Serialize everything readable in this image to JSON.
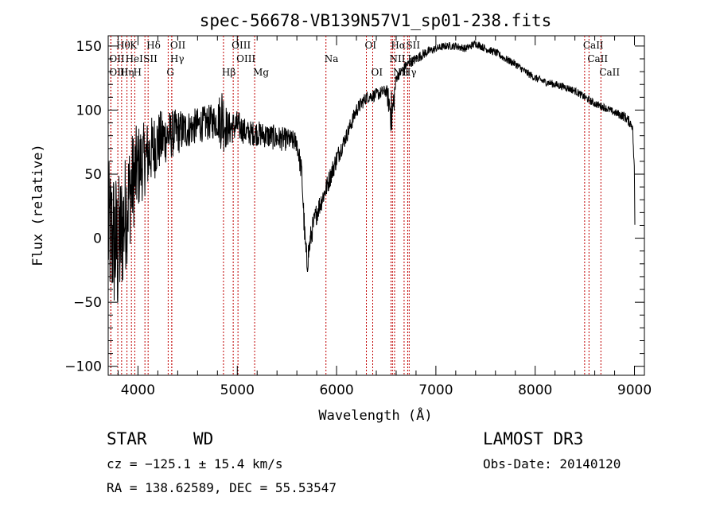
{
  "chart_data": {
    "type": "line",
    "title": "spec-56678-VB139N57V1_sp01-238.fits",
    "xlabel": "Wavelength (Å)",
    "ylabel": "Flux (relative)",
    "xlim": [
      3700,
      9100
    ],
    "ylim": [
      -107,
      158
    ],
    "xticks": [
      4000,
      5000,
      6000,
      7000,
      8000,
      9000
    ],
    "yticks": [
      -100,
      -50,
      0,
      50,
      100,
      150
    ],
    "spectrum_anchors": {
      "wavelength": [
        3700,
        3750,
        3800,
        3850,
        3900,
        3950,
        4000,
        4050,
        4100,
        4200,
        4300,
        4400,
        4500,
        4600,
        4700,
        4800,
        4850,
        4900,
        5000,
        5100,
        5200,
        5300,
        5400,
        5500,
        5600,
        5650,
        5680,
        5700,
        5750,
        5800,
        5900,
        6000,
        6100,
        6200,
        6300,
        6400,
        6500,
        6560,
        6600,
        6700,
        6800,
        6900,
        7000,
        7100,
        7200,
        7300,
        7400,
        7500,
        7600,
        7700,
        7800,
        7900,
        8000,
        8100,
        8200,
        8300,
        8400,
        8500,
        8600,
        8700,
        8800,
        8900,
        8980,
        9000,
        9005
      ],
      "flux": [
        5,
        0,
        -10,
        10,
        30,
        45,
        55,
        60,
        65,
        75,
        80,
        83,
        85,
        88,
        90,
        92,
        95,
        85,
        88,
        82,
        82,
        80,
        78,
        77,
        75,
        50,
        0,
        -20,
        5,
        20,
        40,
        62,
        80,
        100,
        110,
        112,
        115,
        95,
        125,
        135,
        140,
        145,
        148,
        150,
        150,
        148,
        152,
        148,
        145,
        140,
        136,
        130,
        125,
        122,
        120,
        118,
        115,
        110,
        105,
        102,
        98,
        95,
        88,
        50,
        0
      ],
      "noise_amplitude": [
        55,
        60,
        60,
        50,
        45,
        40,
        35,
        30,
        28,
        25,
        20,
        18,
        15,
        14,
        14,
        14,
        30,
        14,
        12,
        10,
        10,
        10,
        10,
        9,
        8,
        10,
        12,
        12,
        10,
        9,
        8,
        8,
        6,
        6,
        5,
        5,
        5,
        20,
        4,
        4,
        4,
        4,
        3,
        3,
        3,
        3,
        3,
        3,
        3,
        3,
        3,
        3,
        3,
        3,
        3,
        3,
        3,
        3,
        3,
        3,
        3,
        4,
        4,
        4,
        4
      ]
    },
    "emission_lines": [
      {
        "label": "Hθ",
        "wavelength": 3797,
        "row": 1
      },
      {
        "label": "K",
        "wavelength": 3934,
        "row": 1
      },
      {
        "label": "Hδ",
        "wavelength": 4102,
        "row": 1
      },
      {
        "label": "OII",
        "wavelength": 4340,
        "row": 1
      },
      {
        "label": "OIII",
        "wavelength": 4959,
        "row": 1
      },
      {
        "label": "OI",
        "wavelength": 6300,
        "row": 1
      },
      {
        "label": "Hα",
        "wavelength": 6563,
        "row": 1
      },
      {
        "label": "SII",
        "wavelength": 6716,
        "row": 1
      },
      {
        "label": "CaII",
        "wavelength": 8498,
        "row": 1
      },
      {
        "label": "OII",
        "wavelength": 3727,
        "row": 2
      },
      {
        "label": "HeI",
        "wavelength": 3889,
        "row": 2
      },
      {
        "label": "SII",
        "wavelength": 4070,
        "row": 2
      },
      {
        "label": "Hγ",
        "wavelength": 4340,
        "row": 2
      },
      {
        "label": "OIII",
        "wavelength": 5007,
        "row": 2
      },
      {
        "label": "Na",
        "wavelength": 5893,
        "row": 2
      },
      {
        "label": "NII",
        "wavelength": 6548,
        "row": 2
      },
      {
        "label": "L",
        "wavelength": 6731,
        "row": 2
      },
      {
        "label": "CaII",
        "wavelength": 8542,
        "row": 2
      },
      {
        "label": "OIII",
        "wavelength": 3727,
        "row": 3
      },
      {
        "label": "Hη",
        "wavelength": 3835,
        "row": 3
      },
      {
        "label": "H",
        "wavelength": 3968,
        "row": 3
      },
      {
        "label": "G",
        "wavelength": 4304,
        "row": 3
      },
      {
        "label": "Hβ",
        "wavelength": 4861,
        "row": 3
      },
      {
        "label": "Mg",
        "wavelength": 5175,
        "row": 3
      },
      {
        "label": "OI",
        "wavelength": 6364,
        "row": 3
      },
      {
        "label": "NII",
        "wavelength": 6584,
        "row": 3
      },
      {
        "label": "Hγ",
        "wavelength": 6680,
        "row": 3
      },
      {
        "label": "CaII",
        "wavelength": 8662,
        "row": 3
      }
    ]
  },
  "footer": {
    "object_class": "STAR",
    "subclass": "WD",
    "survey": "LAMOST DR3",
    "redshift": "cz = −125.1 ± 15.4 km/s",
    "obs_date": "Obs-Date: 20140120",
    "coords": "RA = 138.62589, DEC =  55.53547"
  }
}
